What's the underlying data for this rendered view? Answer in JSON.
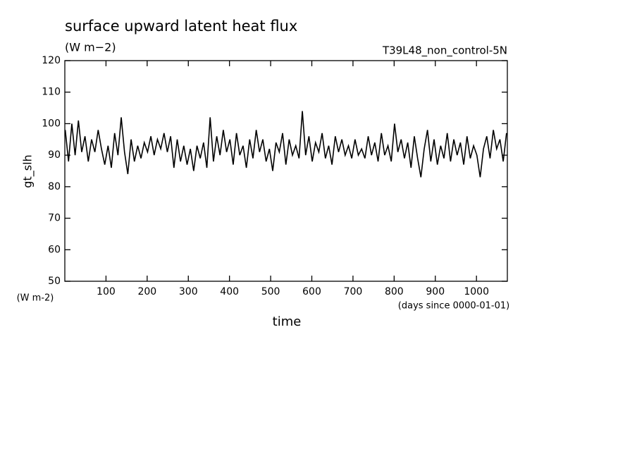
{
  "chart_data": {
    "type": "line",
    "title": "surface upward latent heat flux",
    "subtitle": "(W m−2)",
    "annotation": "T39L48_non_control-5N",
    "y_label": "gt_slh",
    "y_units": "(W m-2)",
    "x_label": "time",
    "x_units": "(days since 0000-01-01)",
    "color": "#000000",
    "x": [
      1,
      9,
      17,
      25,
      33,
      41,
      49,
      57,
      65,
      73,
      81,
      89,
      97,
      105,
      113,
      121,
      129,
      137,
      145,
      153,
      161,
      169,
      177,
      185,
      193,
      201,
      209,
      217,
      225,
      233,
      241,
      249,
      257,
      265,
      273,
      281,
      289,
      297,
      305,
      313,
      321,
      329,
      337,
      345,
      353,
      361,
      369,
      377,
      385,
      393,
      401,
      409,
      417,
      425,
      433,
      441,
      449,
      457,
      465,
      473,
      481,
      489,
      497,
      505,
      513,
      521,
      529,
      537,
      545,
      553,
      561,
      569,
      577,
      585,
      593,
      601,
      609,
      617,
      625,
      633,
      641,
      649,
      657,
      665,
      673,
      681,
      689,
      697,
      705,
      713,
      721,
      729,
      737,
      745,
      753,
      761,
      769,
      777,
      785,
      793,
      801,
      809,
      817,
      825,
      833,
      841,
      849,
      857,
      865,
      873,
      881,
      889,
      897,
      905,
      913,
      921,
      929,
      937,
      945,
      953,
      961,
      969,
      977,
      985,
      993,
      1001,
      1009,
      1017,
      1025,
      1033,
      1041,
      1049,
      1057,
      1065,
      1073
    ],
    "values": [
      98,
      88,
      100,
      90,
      101,
      91,
      96,
      88,
      95,
      91,
      98,
      92,
      87,
      93,
      86,
      97,
      90,
      102,
      91,
      84,
      95,
      88,
      93,
      89,
      94,
      91,
      96,
      90,
      95,
      92,
      97,
      91,
      96,
      86,
      95,
      88,
      93,
      87,
      92,
      85,
      93,
      89,
      94,
      86,
      102,
      88,
      96,
      90,
      98,
      91,
      95,
      87,
      97,
      90,
      93,
      86,
      95,
      89,
      98,
      91,
      95,
      88,
      92,
      85,
      94,
      91,
      97,
      87,
      95,
      90,
      93,
      89,
      104,
      90,
      96,
      88,
      94,
      91,
      97,
      89,
      93,
      87,
      96,
      91,
      95,
      90,
      93,
      89,
      95,
      90,
      92,
      89,
      96,
      90,
      94,
      88,
      97,
      90,
      93,
      88,
      100,
      91,
      95,
      89,
      94,
      86,
      96,
      89,
      83,
      92,
      98,
      88,
      95,
      87,
      93,
      89,
      97,
      88,
      95,
      90,
      94,
      87,
      96,
      89,
      93,
      90,
      83,
      92,
      96,
      89,
      98,
      92,
      95,
      88,
      97
    ],
    "xlim": [
      0,
      1075
    ],
    "ylim": [
      50,
      120
    ],
    "xticks": [
      100,
      200,
      300,
      400,
      500,
      600,
      700,
      800,
      900,
      1000
    ],
    "yticks": [
      50,
      60,
      70,
      80,
      90,
      100,
      110,
      120
    ]
  }
}
